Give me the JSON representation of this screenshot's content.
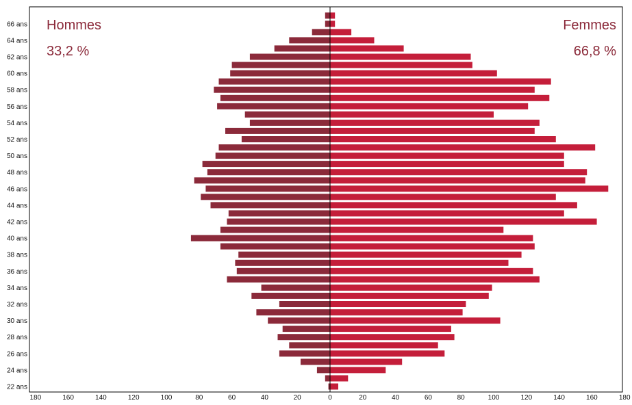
{
  "chart_data": {
    "type": "bar",
    "orientation": "horizontal",
    "layout": "population-pyramid",
    "ages": [
      22,
      23,
      24,
      25,
      26,
      27,
      28,
      29,
      30,
      31,
      32,
      33,
      34,
      35,
      36,
      37,
      38,
      39,
      40,
      41,
      42,
      43,
      44,
      45,
      46,
      47,
      48,
      49,
      50,
      51,
      52,
      53,
      54,
      55,
      56,
      57,
      58,
      59,
      60,
      61,
      62,
      63,
      64,
      65,
      66,
      67
    ],
    "y_tick_labels": [
      "22 ans",
      "24 ans",
      "26 ans",
      "28 ans",
      "30 ans",
      "32 ans",
      "34 ans",
      "36 ans",
      "38 ans",
      "40 ans",
      "42 ans",
      "44 ans",
      "46 ans",
      "48 ans",
      "50 ans",
      "52 ans",
      "54 ans",
      "56 ans",
      "58 ans",
      "60 ans",
      "62 ans",
      "64 ans",
      "66 ans"
    ],
    "x_tick_labels": [
      "180",
      "160",
      "140",
      "120",
      "100",
      "80",
      "60",
      "40",
      "20",
      "0",
      "20",
      "40",
      "60",
      "80",
      "100",
      "120",
      "140",
      "160",
      "180"
    ],
    "xlim": [
      -180,
      180
    ],
    "series": [
      {
        "name": "Hommes",
        "share": "33,2 %",
        "side": "left",
        "color": "#8b2a3a",
        "values": [
          1,
          3,
          8,
          18,
          31,
          25,
          32,
          29,
          38,
          45,
          31,
          48,
          42,
          63,
          57,
          58,
          56,
          67,
          85,
          67,
          63,
          62,
          73,
          79,
          76,
          83,
          75,
          78,
          70,
          68,
          54,
          64,
          49,
          52,
          69,
          67,
          71,
          68,
          61,
          60,
          49,
          34,
          25,
          11,
          3,
          3
        ]
      },
      {
        "name": "Femmes",
        "share": "66,8 %",
        "side": "right",
        "color": "#c41e3a",
        "values": [
          5,
          11,
          34,
          44,
          70,
          66,
          76,
          74,
          104,
          81,
          83,
          97,
          99,
          128,
          124,
          109,
          117,
          125,
          124,
          106,
          163,
          143,
          151,
          138,
          170,
          156,
          157,
          143,
          143,
          162,
          138,
          125,
          128,
          100,
          121,
          134,
          125,
          135,
          102,
          87,
          86,
          45,
          27,
          13,
          3,
          3
        ]
      }
    ],
    "axis_color": "#000000",
    "text_color": "#8b2a3a"
  }
}
